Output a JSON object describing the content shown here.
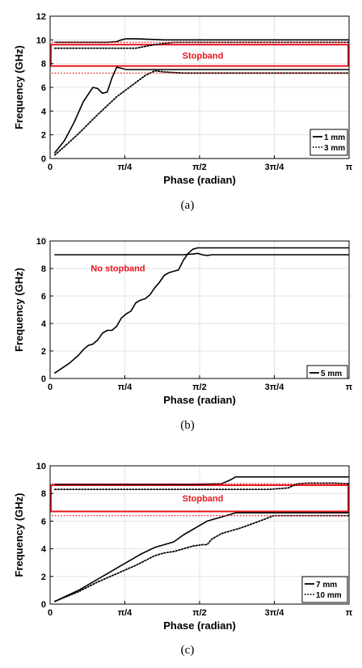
{
  "chart_data": [
    {
      "type": "line",
      "xlabel": "Phase (radian)",
      "ylabel": "Frequency (GHz)",
      "caption": "(a)",
      "xlim": [
        0,
        3.1416
      ],
      "ylim": [
        0,
        12
      ],
      "yticks": [
        0,
        2,
        4,
        6,
        8,
        10,
        12
      ],
      "xticks": [
        {
          "value": 0,
          "label": "0"
        },
        {
          "value": 0.7854,
          "label": "π/4"
        },
        {
          "value": 1.5708,
          "label": "π/2"
        },
        {
          "value": 2.3562,
          "label": "3π/4"
        },
        {
          "value": 3.1416,
          "label": "π"
        }
      ],
      "grid": true,
      "legend_position": "bottom-right",
      "annotations": [
        {
          "text": "Stopband",
          "color": "#e8141c"
        }
      ],
      "stopband_box": {
        "y_bottom": 7.8,
        "y_top": 9.6
      },
      "series": [
        {
          "name": "1 mm",
          "style": "solid",
          "color": "#000000",
          "x": [
            0.05,
            0.15,
            0.25,
            0.35,
            0.45,
            0.5,
            0.55,
            0.6,
            0.65,
            0.7,
            0.75,
            0.8,
            0.85,
            0.95,
            1.1,
            1.4,
            1.8,
            2.2,
            2.6,
            3.14
          ],
          "y": [
            0.5,
            1.5,
            3.0,
            4.8,
            6.0,
            5.9,
            5.5,
            5.6,
            6.8,
            7.7,
            7.6,
            7.5,
            7.5,
            7.5,
            7.5,
            7.5,
            7.5,
            7.5,
            7.5,
            7.5
          ]
        },
        {
          "name": "",
          "style": "solid",
          "color": "#000000",
          "x": [
            0.05,
            0.3,
            0.6,
            0.7,
            0.75,
            0.8,
            0.9,
            1.2,
            1.6,
            2.0,
            2.4,
            2.8,
            3.14
          ],
          "y": [
            9.8,
            9.8,
            9.8,
            9.85,
            10.0,
            10.1,
            10.1,
            10.0,
            10.0,
            10.0,
            10.0,
            10.0,
            10.0
          ]
        },
        {
          "name": "3 mm",
          "style": "dotted",
          "color": "#000000",
          "x": [
            0.05,
            0.15,
            0.3,
            0.5,
            0.7,
            0.9,
            1.0,
            1.1,
            1.2,
            1.4,
            1.7,
            2.0,
            2.4,
            2.8,
            3.14
          ],
          "y": [
            0.3,
            1.0,
            2.1,
            3.7,
            5.2,
            6.4,
            7.0,
            7.4,
            7.3,
            7.2,
            7.2,
            7.2,
            7.2,
            7.2,
            7.2
          ]
        },
        {
          "name": "",
          "style": "dotted",
          "color": "#000000",
          "x": [
            0.05,
            0.4,
            0.7,
            0.9,
            1.1,
            1.3,
            1.6,
            2.0,
            2.4,
            2.8,
            3.14
          ],
          "y": [
            9.3,
            9.3,
            9.3,
            9.3,
            9.6,
            9.8,
            9.8,
            9.8,
            9.8,
            9.8,
            9.8
          ]
        }
      ]
    },
    {
      "type": "line",
      "xlabel": "Phase (radian)",
      "ylabel": "Frequency (GHz)",
      "caption": "(b)",
      "xlim": [
        0,
        3.1416
      ],
      "ylim": [
        0,
        10
      ],
      "yticks": [
        0,
        2,
        4,
        6,
        8,
        10
      ],
      "xticks": [
        {
          "value": 0,
          "label": "0"
        },
        {
          "value": 0.7854,
          "label": "π/4"
        },
        {
          "value": 1.5708,
          "label": "π/2"
        },
        {
          "value": 2.3562,
          "label": "3π/4"
        },
        {
          "value": 3.1416,
          "label": "π"
        }
      ],
      "grid": true,
      "legend_position": "bottom-right",
      "annotations": [
        {
          "text": "No stopband",
          "color": "#e8141c"
        }
      ],
      "series": [
        {
          "name": "5 mm",
          "style": "solid",
          "color": "#000000",
          "x": [
            0.05,
            0.2,
            0.3,
            0.35,
            0.4,
            0.45,
            0.5,
            0.55,
            0.6,
            0.65,
            0.7,
            0.75,
            0.8,
            0.85,
            0.9,
            0.95,
            1.0,
            1.05,
            1.1,
            1.15,
            1.2,
            1.25,
            1.3,
            1.35,
            1.4,
            1.45,
            1.5,
            1.55,
            1.6,
            1.65,
            1.7,
            1.8,
            2.0,
            2.4,
            2.8,
            3.14
          ],
          "y": [
            0.4,
            1.1,
            1.7,
            2.1,
            2.4,
            2.5,
            2.8,
            3.3,
            3.5,
            3.5,
            3.8,
            4.4,
            4.7,
            4.9,
            5.5,
            5.7,
            5.8,
            6.1,
            6.6,
            7.0,
            7.5,
            7.7,
            7.8,
            7.9,
            8.6,
            9.1,
            9.4,
            9.5,
            9.5,
            9.5,
            9.5,
            9.5,
            9.5,
            9.5,
            9.5,
            9.5
          ]
        },
        {
          "name": "",
          "style": "solid",
          "color": "#000000",
          "x": [
            0.05,
            0.5,
            1.0,
            1.4,
            1.5,
            1.55,
            1.6,
            1.65,
            1.7,
            2.0,
            2.4,
            2.8,
            3.14
          ],
          "y": [
            9.0,
            9.0,
            9.0,
            9.0,
            9.05,
            9.1,
            9.0,
            8.95,
            9.0,
            9.0,
            9.0,
            9.0,
            9.0
          ]
        }
      ]
    },
    {
      "type": "line",
      "xlabel": "Phase (radian)",
      "ylabel": "Frequency (GHz)",
      "caption": "(c)",
      "xlim": [
        0,
        3.1416
      ],
      "ylim": [
        0,
        10
      ],
      "yticks": [
        0,
        2,
        4,
        6,
        8,
        10
      ],
      "xticks": [
        {
          "value": 0,
          "label": "0"
        },
        {
          "value": 0.7854,
          "label": "π/4"
        },
        {
          "value": 1.5708,
          "label": "π/2"
        },
        {
          "value": 2.3562,
          "label": "3π/4"
        },
        {
          "value": 3.1416,
          "label": "π"
        }
      ],
      "grid": true,
      "legend_position": "bottom-right",
      "annotations": [
        {
          "text": "Stopband",
          "color": "#e8141c"
        }
      ],
      "stopband_box": {
        "y_bottom": 6.7,
        "y_top": 8.6
      },
      "series": [
        {
          "name": "7 mm",
          "style": "solid",
          "color": "#000000",
          "x": [
            0.05,
            0.3,
            0.4,
            0.6,
            0.75,
            0.85,
            0.95,
            1.1,
            1.2,
            1.3,
            1.4,
            1.55,
            1.65,
            1.75,
            1.85,
            1.95,
            2.1,
            2.4,
            2.8,
            3.14
          ],
          "y": [
            0.2,
            1.0,
            1.4,
            2.2,
            2.8,
            3.2,
            3.6,
            4.1,
            4.3,
            4.5,
            5.0,
            5.6,
            6.0,
            6.2,
            6.4,
            6.6,
            6.6,
            6.6,
            6.6,
            6.6
          ]
        },
        {
          "name": "",
          "style": "solid",
          "color": "#000000",
          "x": [
            0.05,
            0.5,
            1.0,
            1.5,
            1.8,
            1.9,
            1.95,
            2.0,
            2.1,
            2.4,
            2.8,
            3.14
          ],
          "y": [
            8.65,
            8.65,
            8.65,
            8.65,
            8.7,
            9.0,
            9.2,
            9.2,
            9.2,
            9.2,
            9.2,
            9.2
          ]
        },
        {
          "name": "10 mm",
          "style": "dotted",
          "color": "#000000",
          "x": [
            0.05,
            0.3,
            0.5,
            0.7,
            0.9,
            1.1,
            1.2,
            1.3,
            1.4,
            1.5,
            1.6,
            1.65,
            1.7,
            1.8,
            2.0,
            2.2,
            2.35,
            2.45,
            2.6,
            2.8,
            3.14
          ],
          "y": [
            0.2,
            0.9,
            1.6,
            2.2,
            2.8,
            3.5,
            3.7,
            3.8,
            4.0,
            4.2,
            4.3,
            4.3,
            4.7,
            5.1,
            5.5,
            6.0,
            6.4,
            6.4,
            6.4,
            6.4,
            6.4
          ]
        },
        {
          "name": "",
          "style": "dotted",
          "color": "#000000",
          "x": [
            0.05,
            0.5,
            1.0,
            1.5,
            2.0,
            2.3,
            2.5,
            2.6,
            2.7,
            2.8,
            3.0,
            3.14
          ],
          "y": [
            8.3,
            8.3,
            8.3,
            8.3,
            8.3,
            8.3,
            8.4,
            8.7,
            8.75,
            8.75,
            8.75,
            8.7
          ]
        }
      ]
    }
  ]
}
